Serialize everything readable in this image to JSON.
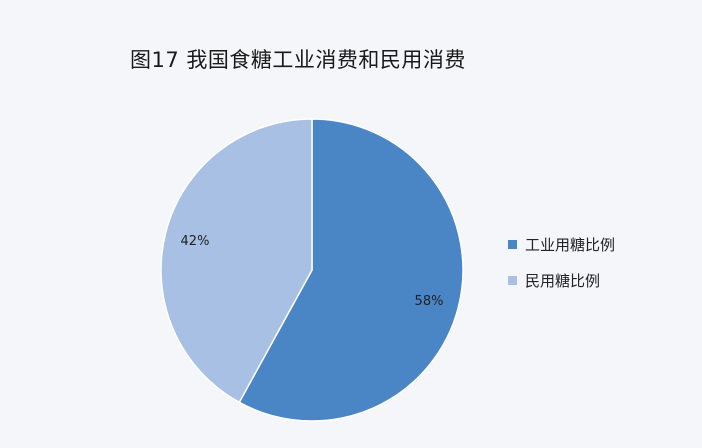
{
  "chart_data": {
    "type": "pie",
    "title": "图17  我国食糖工业消费和民用消费",
    "categories": [
      "工业用糖比例",
      "民用糖比例"
    ],
    "values": [
      58,
      42
    ],
    "labels": [
      "58%",
      "42%"
    ],
    "colors": [
      "#4a86c5",
      "#a7c0e3"
    ],
    "legend": "right"
  }
}
